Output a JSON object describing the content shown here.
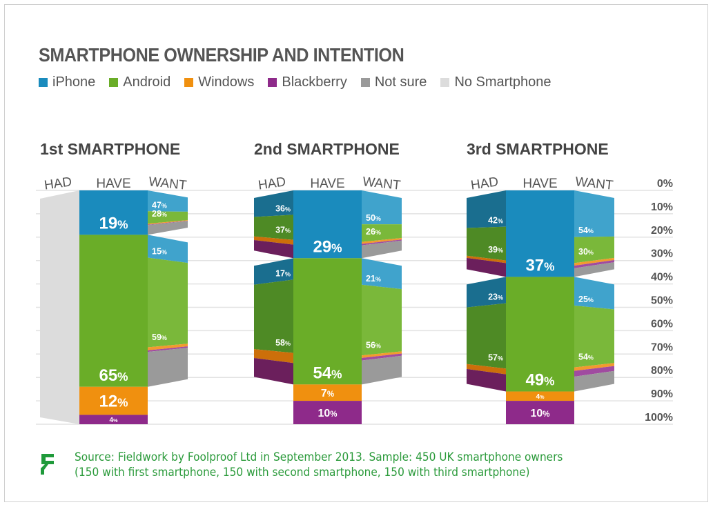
{
  "chart_data": {
    "type": "bar",
    "title": "SMARTPHONE OWNERSHIP AND INTENTION",
    "legend": [
      {
        "name": "iPhone",
        "color": "#1a8bbd"
      },
      {
        "name": "Android",
        "color": "#6aad28"
      },
      {
        "name": "Windows",
        "color": "#f0900f"
      },
      {
        "name": "Blackberry",
        "color": "#8e2a8a"
      },
      {
        "name": "Not sure",
        "color": "#9a9a9a"
      },
      {
        "name": "No Smartphone",
        "color": "#dcdcdc"
      }
    ],
    "legend_position": "top-left",
    "y_ticks": [
      "0%",
      "10%",
      "20%",
      "30%",
      "40%",
      "50%",
      "60%",
      "70%",
      "80%",
      "90%",
      "100%"
    ],
    "ylim": [
      0,
      100
    ],
    "grid": true,
    "column_labels": {
      "had": "HAD",
      "have": "HAVE",
      "want": "WANT"
    },
    "panels": [
      {
        "title": "1st SMARTPHONE",
        "have": {
          "iPhone": 19,
          "Android": 65,
          "Windows": 12,
          "Blackberry": 4
        },
        "had": {
          "No Smartphone": 100
        },
        "want": {
          "iPhone": {
            "iPhone": 47,
            "Android": 28,
            "Windows": 2,
            "Blackberry": 1,
            "Not sure": 22
          },
          "Android": {
            "iPhone": 15,
            "Android": 59,
            "Windows": 2,
            "Blackberry": 1,
            "Not sure": 23
          }
        }
      },
      {
        "title": "2nd SMARTPHONE",
        "have": {
          "iPhone": 29,
          "Android": 54,
          "Windows": 7,
          "Blackberry": 10
        },
        "had": {
          "iPhone": {
            "iPhone": 36,
            "Android": 37,
            "Windows": 7,
            "Blackberry": 20
          },
          "Android": {
            "iPhone": 17,
            "Android": 58,
            "Windows": 8,
            "Blackberry": 17
          }
        },
        "want": {
          "iPhone": {
            "iPhone": 50,
            "Android": 26,
            "Windows": 3,
            "Blackberry": 2,
            "Not sure": 19
          },
          "Android": {
            "iPhone": 21,
            "Android": 56,
            "Windows": 2,
            "Blackberry": 2,
            "Not sure": 19
          }
        }
      },
      {
        "title": "3rd SMARTPHONE",
        "have": {
          "iPhone": 37,
          "Android": 49,
          "Windows": 4,
          "Blackberry": 10
        },
        "had": {
          "iPhone": {
            "iPhone": 42,
            "Android": 39,
            "Windows": 3,
            "Blackberry": 16
          },
          "Android": {
            "iPhone": 23,
            "Android": 57,
            "Windows": 5,
            "Blackberry": 15
          }
        },
        "want": {
          "iPhone": {
            "iPhone": 54,
            "Android": 30,
            "Windows": 3,
            "Blackberry": 3,
            "Not sure": 10
          },
          "Android": {
            "iPhone": 25,
            "Android": 54,
            "Windows": 3,
            "Blackberry": 5,
            "Not sure": 13
          }
        }
      }
    ],
    "colors": {
      "had": {
        "iPhone": "#1a6e8f",
        "Android": "#4e8a25",
        "Windows": "#cc6f0a",
        "Blackberry": "#6b1f5c",
        "No Smartphone": "#dcdcdc"
      },
      "have": {
        "iPhone": "#1a8bbd",
        "Android": "#6aad28",
        "Windows": "#f0900f",
        "Blackberry": "#8e2a8a"
      },
      "want": {
        "iPhone": "#40a3cc",
        "Android": "#7ab83a",
        "Windows": "#f29a2e",
        "Blackberry": "#a04ba0",
        "Not sure": "#9a9a9a"
      }
    }
  },
  "source": {
    "line1": "Source: Fieldwork by Foolproof Ltd in September 2013. Sample: 450 UK smartphone owners",
    "line2": "(150 with first smartphone, 150 with second smartphone, 150 with third smartphone)",
    "logo_color": "#1f9a3a"
  }
}
